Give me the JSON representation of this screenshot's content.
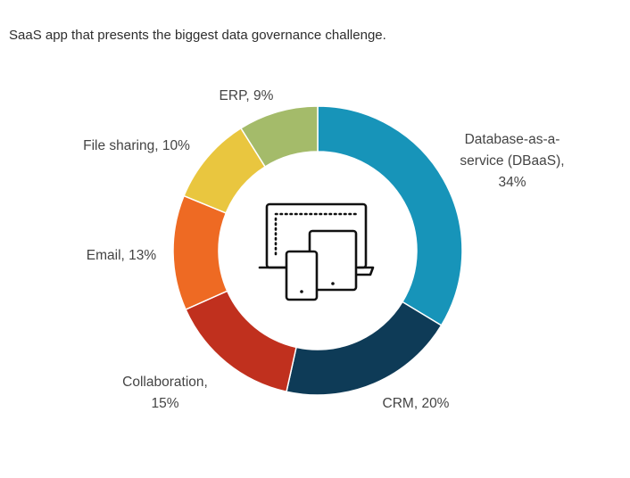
{
  "title": "SaaS app that presents the biggest data governance challenge.",
  "center_icon": "devices-icon",
  "chart_data": {
    "type": "pie",
    "variant": "donut",
    "start": "top, clockwise",
    "slices": [
      {
        "label": "Database-as-a-service (DBaaS)",
        "label_lines": [
          "Database-as-a-",
          "service (DBaaS),",
          "34%"
        ],
        "value": 34,
        "color": "#1794b9"
      },
      {
        "label": "CRM",
        "label_lines": [
          "CRM, 20%"
        ],
        "value": 20,
        "color": "#0e3b57"
      },
      {
        "label": "Collaboration",
        "label_lines": [
          "Collaboration,",
          "15%"
        ],
        "value": 15,
        "color": "#c0301e"
      },
      {
        "label": "Email",
        "label_lines": [
          "Email, 13%"
        ],
        "value": 13,
        "color": "#ee6a23"
      },
      {
        "label": "File sharing",
        "label_lines": [
          "File sharing, 10%"
        ],
        "value": 10,
        "color": "#e9c63f"
      },
      {
        "label": "ERP",
        "label_lines": [
          "ERP, 9%"
        ],
        "value": 9,
        "color": "#a4bb6a"
      }
    ]
  }
}
